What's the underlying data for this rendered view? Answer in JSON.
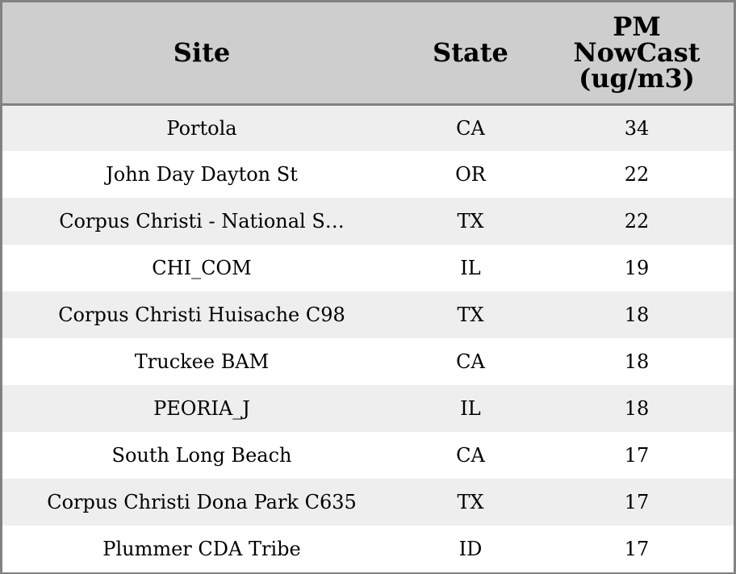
{
  "chart_data": {
    "type": "table",
    "columns": [
      "Site",
      "State",
      "PM NowCast (ug/m3)"
    ],
    "header_lines": {
      "site": "Site",
      "state": "State",
      "pm": [
        "PM",
        "NowCast",
        "(ug/m3)"
      ]
    },
    "rows": [
      {
        "site": "Portola",
        "state": "CA",
        "pm": "34"
      },
      {
        "site": "John Day Dayton St",
        "state": "OR",
        "pm": "22"
      },
      {
        "site": "Corpus Christi - National S…",
        "state": "TX",
        "pm": "22"
      },
      {
        "site": "CHI_COM",
        "state": "IL",
        "pm": "19"
      },
      {
        "site": "Corpus Christi Huisache C98",
        "state": "TX",
        "pm": "18"
      },
      {
        "site": "Truckee BAM",
        "state": "CA",
        "pm": "18"
      },
      {
        "site": "PEORIA_J",
        "state": "IL",
        "pm": "18"
      },
      {
        "site": "South Long Beach",
        "state": "CA",
        "pm": "17"
      },
      {
        "site": "Corpus Christi Dona Park C635",
        "state": "TX",
        "pm": "17"
      },
      {
        "site": "Plummer CDA Tribe",
        "state": "ID",
        "pm": "17"
      }
    ]
  },
  "colors": {
    "header_bg": "#cecece",
    "row_alt_bg": "#eeeeee",
    "row_bg": "#ffffff",
    "border": "#828282"
  }
}
